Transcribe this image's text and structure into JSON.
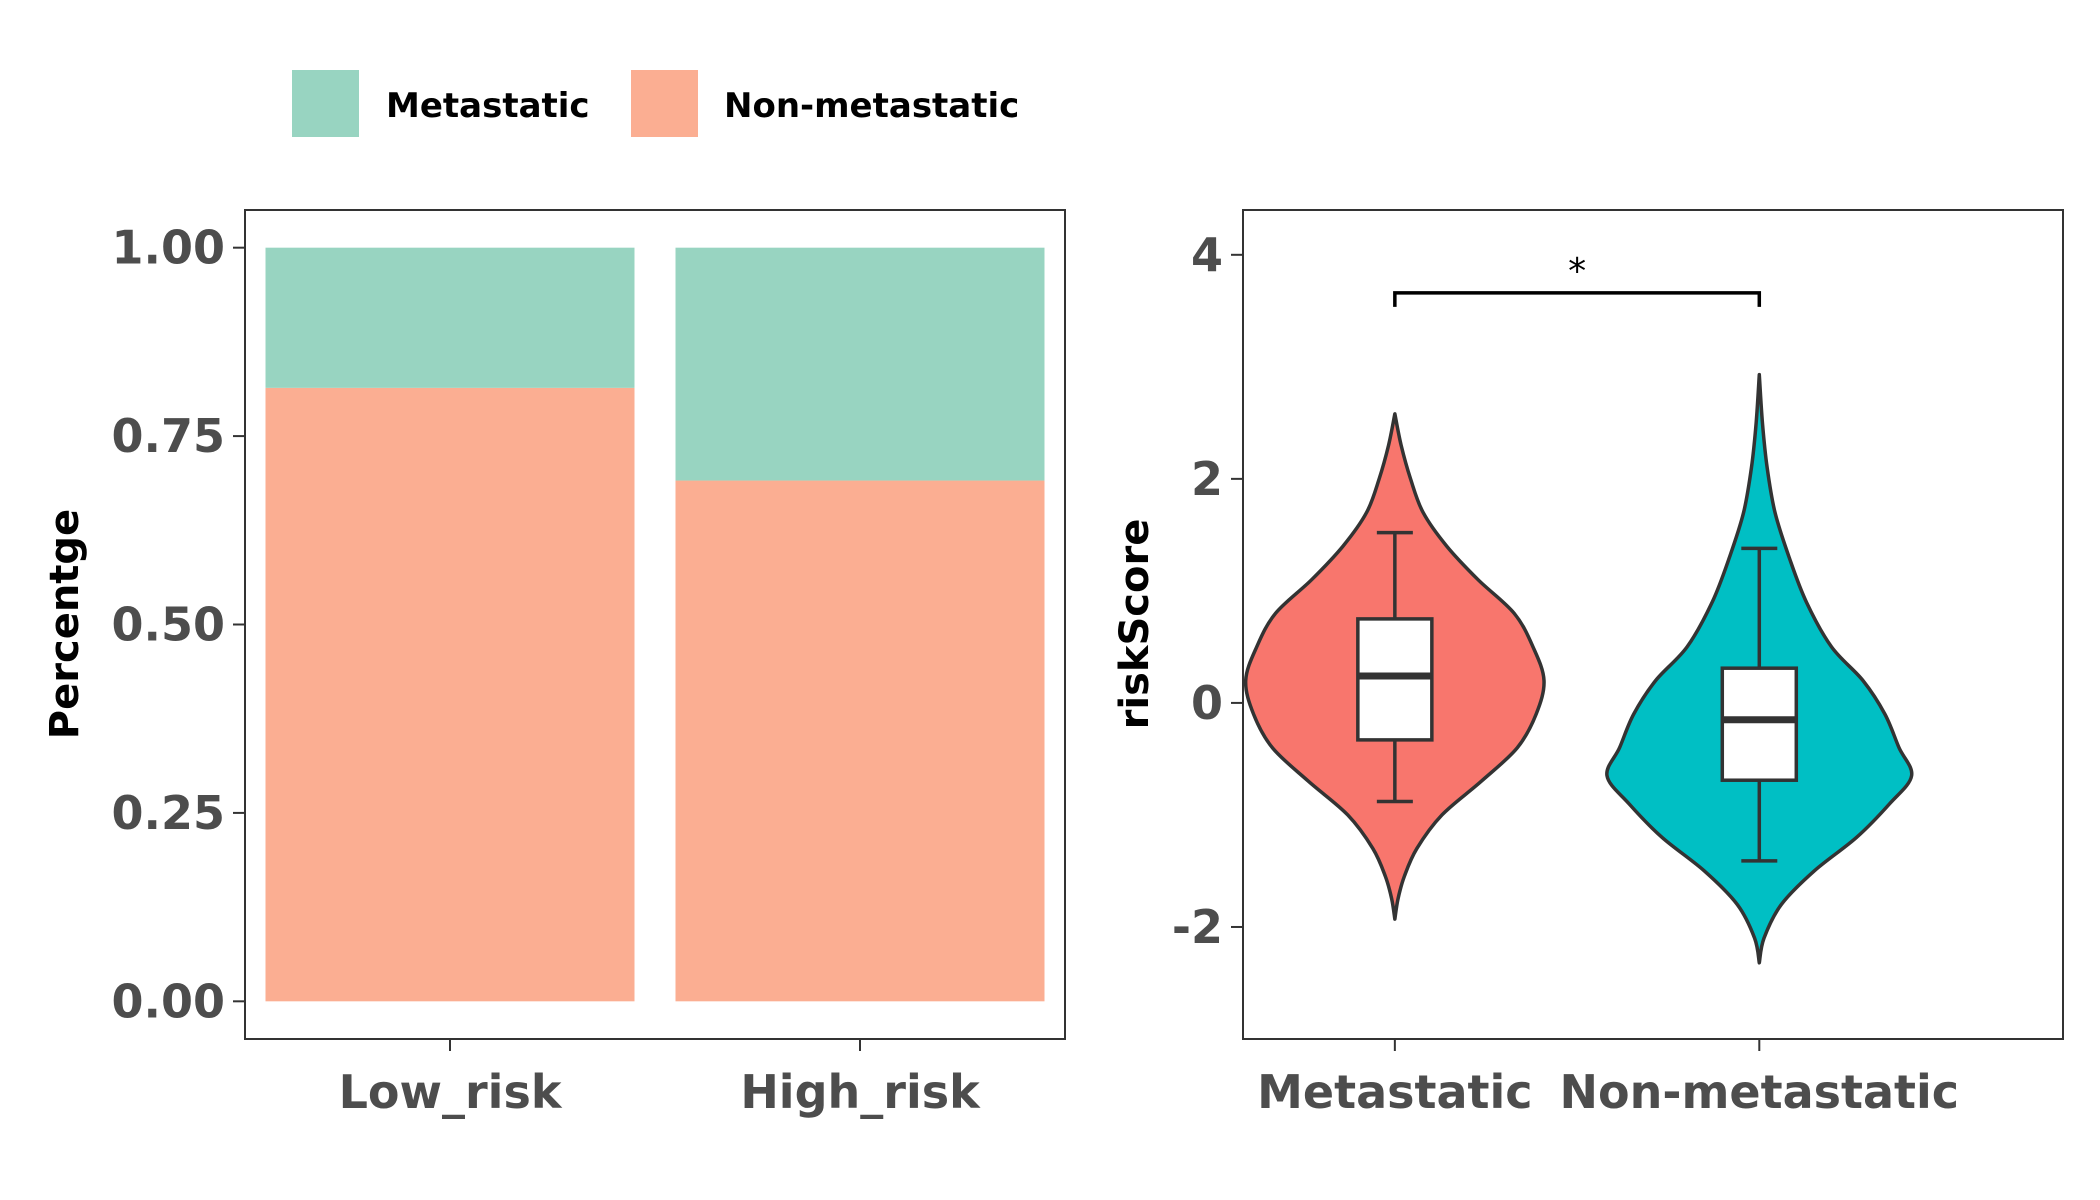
{
  "legend": {
    "items": [
      {
        "label": "Metastatic",
        "color": "#98d4c1"
      },
      {
        "label": "Non-metastatic",
        "color": "#fbae92"
      }
    ]
  },
  "chart_data": [
    {
      "type": "bar",
      "stacked": true,
      "categories": [
        "Low_risk",
        "High_risk"
      ],
      "series": [
        {
          "name": "Non-metastatic",
          "color": "#fbae92",
          "values": [
            0.814,
            0.691
          ]
        },
        {
          "name": "Metastatic",
          "color": "#98d4c1",
          "values": [
            0.186,
            0.309
          ]
        }
      ],
      "xlabel": "",
      "ylabel": "Percentge",
      "ylim": [
        -0.05,
        1.05
      ],
      "yticks": [
        0,
        0.25,
        0.5,
        0.75,
        1.0
      ],
      "ytick_labels": [
        "0.00",
        "0.25",
        "0.50",
        "0.75",
        "1.00"
      ],
      "grid": false
    },
    {
      "type": "violin",
      "categories": [
        "Metastatic",
        "Non-metastatic"
      ],
      "colors": [
        "#f8766d",
        "#00bfc4"
      ],
      "xlabel": "",
      "ylabel": "riskScore",
      "ylim": [
        -3.0,
        4.4
      ],
      "yticks": [
        -2,
        0,
        2,
        4
      ],
      "ytick_labels": [
        "-2",
        "0",
        "2",
        "4"
      ],
      "grid": false,
      "boxes": [
        {
          "category": "Metastatic",
          "whisker_low": -0.88,
          "q1": -0.33,
          "median": 0.24,
          "q3": 0.75,
          "whisker_high": 1.52
        },
        {
          "category": "Non-metastatic",
          "whisker_low": -1.41,
          "q1": -0.69,
          "median": -0.15,
          "q3": 0.31,
          "whisker_high": 1.38
        }
      ],
      "violins": [
        {
          "category": "Metastatic",
          "min": -1.93,
          "max": 2.58,
          "profile": [
            [
              -1.93,
              0.0
            ],
            [
              -1.75,
              0.02
            ],
            [
              -1.55,
              0.06
            ],
            [
              -1.3,
              0.14
            ],
            [
              -1.0,
              0.3
            ],
            [
              -0.7,
              0.55
            ],
            [
              -0.4,
              0.78
            ],
            [
              -0.1,
              0.9
            ],
            [
              0.2,
              0.95
            ],
            [
              0.5,
              0.88
            ],
            [
              0.8,
              0.76
            ],
            [
              1.1,
              0.53
            ],
            [
              1.4,
              0.33
            ],
            [
              1.7,
              0.18
            ],
            [
              2.0,
              0.1
            ],
            [
              2.3,
              0.04
            ],
            [
              2.58,
              0.0
            ]
          ]
        },
        {
          "category": "Non-metastatic",
          "min": -2.32,
          "max": 2.93,
          "profile": [
            [
              -2.32,
              0.0
            ],
            [
              -2.1,
              0.03
            ],
            [
              -1.8,
              0.14
            ],
            [
              -1.5,
              0.35
            ],
            [
              -1.2,
              0.62
            ],
            [
              -0.9,
              0.83
            ],
            [
              -0.65,
              0.97
            ],
            [
              -0.4,
              0.89
            ],
            [
              -0.1,
              0.8
            ],
            [
              0.2,
              0.66
            ],
            [
              0.5,
              0.46
            ],
            [
              0.9,
              0.3
            ],
            [
              1.3,
              0.19
            ],
            [
              1.7,
              0.1
            ],
            [
              2.1,
              0.05
            ],
            [
              2.5,
              0.02
            ],
            [
              2.93,
              0.0
            ]
          ]
        }
      ],
      "annotations": [
        {
          "text": "*",
          "from": "Metastatic",
          "to": "Non-metastatic",
          "y": 3.66
        }
      ]
    }
  ]
}
